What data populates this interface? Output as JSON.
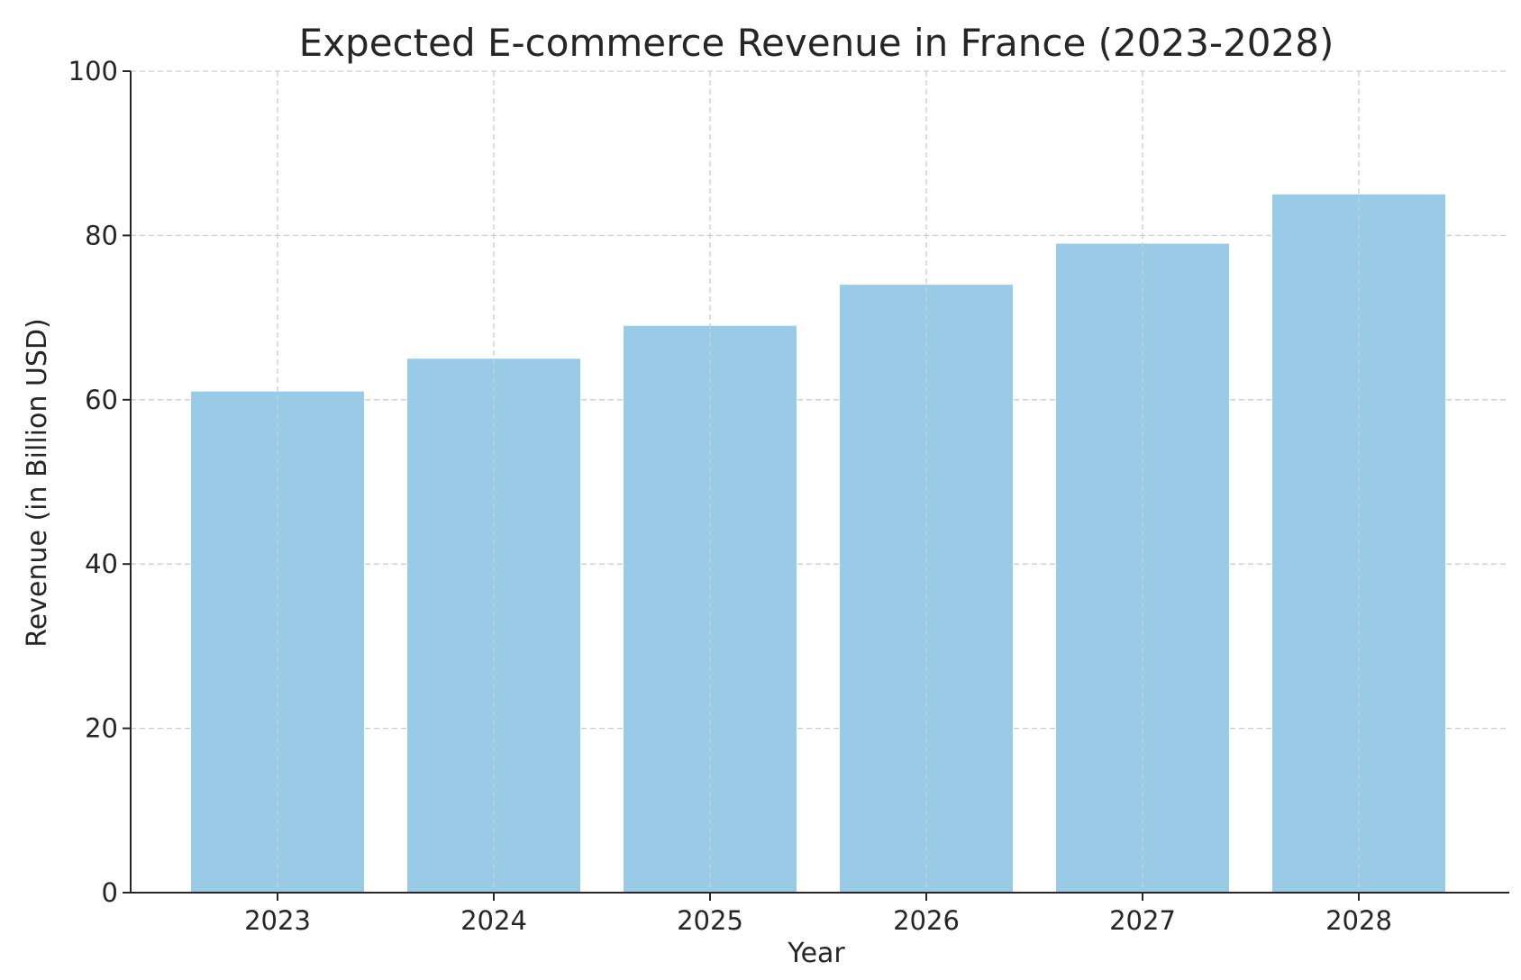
{
  "chart_data": {
    "type": "bar",
    "title": "Expected E-commerce Revenue in France (2023-2028)",
    "xlabel": "Year",
    "ylabel": "Revenue (in Billion USD)",
    "categories": [
      "2023",
      "2024",
      "2025",
      "2026",
      "2027",
      "2028"
    ],
    "values": [
      61,
      65,
      69,
      74,
      79,
      85
    ],
    "ylim": [
      0,
      100
    ],
    "yticks": [
      0,
      20,
      40,
      60,
      80,
      100
    ],
    "grid": true,
    "legend": "none",
    "bar_color": "#99cbe7",
    "grid_color": "#cccccc",
    "axis_color": "#262626",
    "text_color": "#262626"
  }
}
